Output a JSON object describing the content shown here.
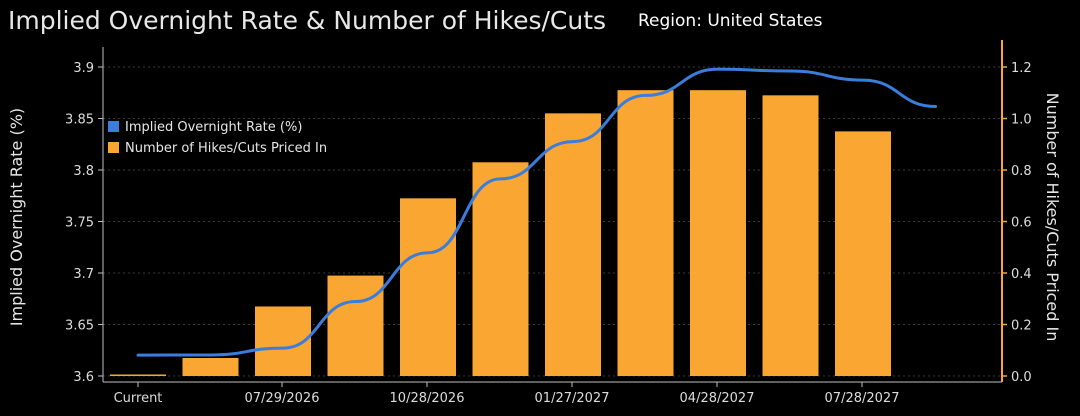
{
  "header": {
    "title": "Implied Overnight Rate & Number of Hikes/Cuts",
    "region": "Region: United States"
  },
  "colors": {
    "background": "#000000",
    "bar": "#f9a633",
    "line": "#3b7ddd",
    "grid": "#3a3a3a",
    "right_axis": "#f9a633"
  },
  "chart_data": {
    "type": "bar",
    "title": "Implied Overnight Rate & Number of Hikes/Cuts",
    "x_ticks": [
      "Current",
      "07/29/2026",
      "10/28/2026",
      "01/27/2027",
      "04/28/2027",
      "07/28/2027"
    ],
    "series": [
      {
        "name": "Number of Hikes/Cuts Priced In",
        "type": "bar",
        "axis": "right",
        "values": [
          0.0,
          0.07,
          0.27,
          0.39,
          0.69,
          0.83,
          1.02,
          1.11,
          1.11,
          1.09,
          0.95
        ]
      },
      {
        "name": "Implied Overnight Rate (%)",
        "type": "line",
        "axis": "left",
        "values": [
          3.6203,
          3.6204,
          3.6271,
          3.6723,
          3.7197,
          3.7914,
          3.8276,
          3.8724,
          3.8979,
          3.8961,
          3.8873,
          3.8616
        ]
      }
    ],
    "ylabel_left": "Implied Overnight Rate (%)",
    "ylabel_right": "Number of Hikes/Cuts Priced In",
    "ylim_left": [
      3.6,
      3.9
    ],
    "yticks_left": [
      "3.6",
      "3.65",
      "3.7",
      "3.75",
      "3.8",
      "3.85",
      "3.9"
    ],
    "ylim_right": [
      0.0,
      1.2
    ],
    "yticks_right": [
      "0.0",
      "0.2",
      "0.4",
      "0.6",
      "0.8",
      "1.0",
      "1.2"
    ],
    "grid": true,
    "legend_position": "top-left"
  }
}
